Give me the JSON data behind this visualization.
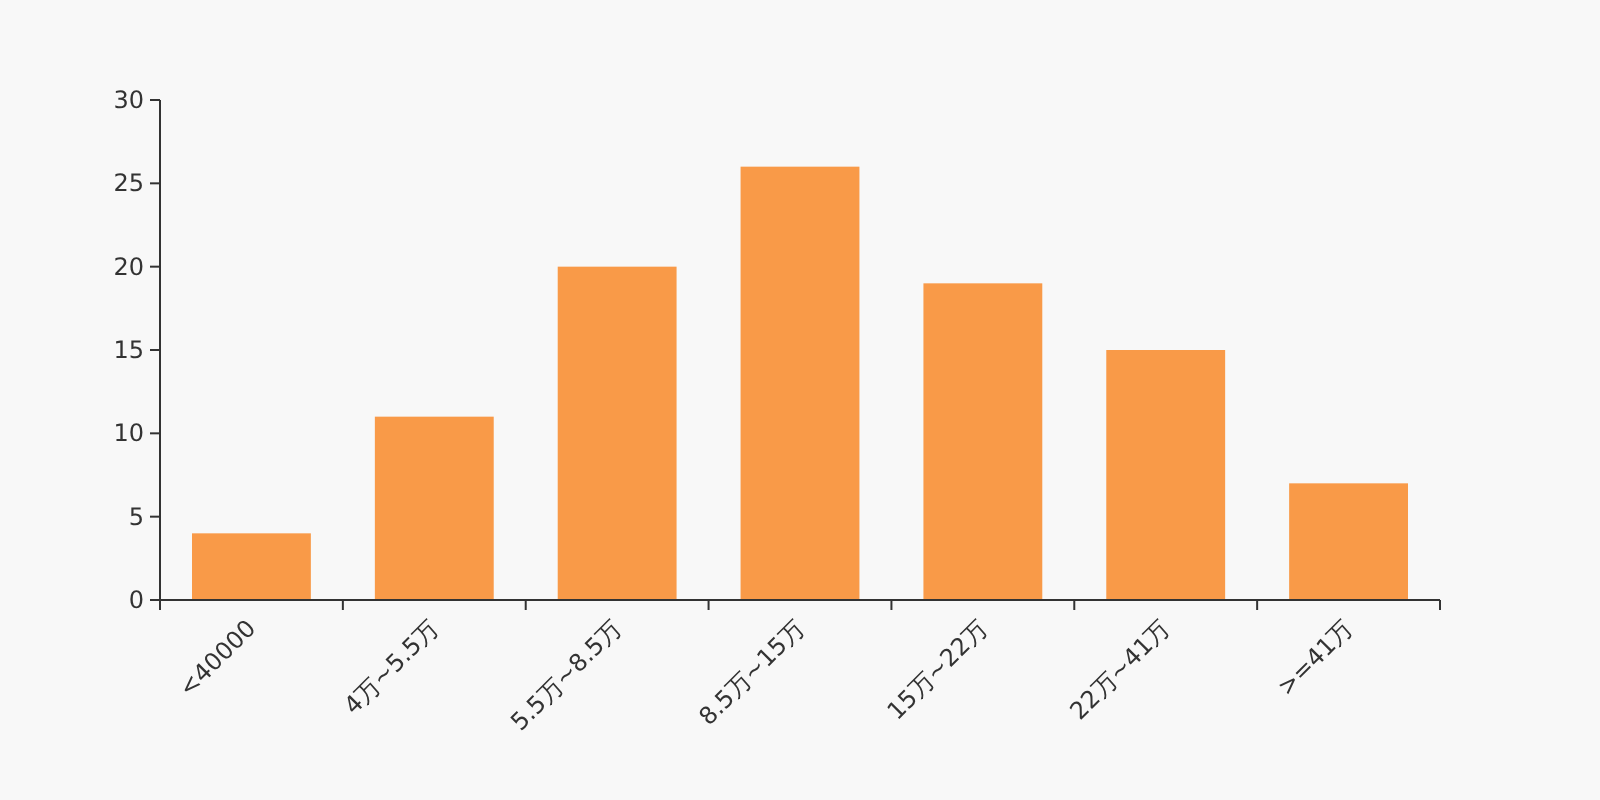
{
  "chart_data": {
    "type": "bar",
    "categories": [
      "<40000",
      "4万~5.5万",
      "5.5万~8.5万",
      "8.5万~15万",
      "15万~22万",
      "22万~41万",
      ">=41万"
    ],
    "values": [
      4,
      11,
      20,
      26,
      19,
      15,
      7
    ],
    "color": "#f99a48",
    "ylim": [
      0,
      30
    ],
    "yticks": [
      0,
      5,
      10,
      15,
      20,
      25,
      30
    ]
  }
}
